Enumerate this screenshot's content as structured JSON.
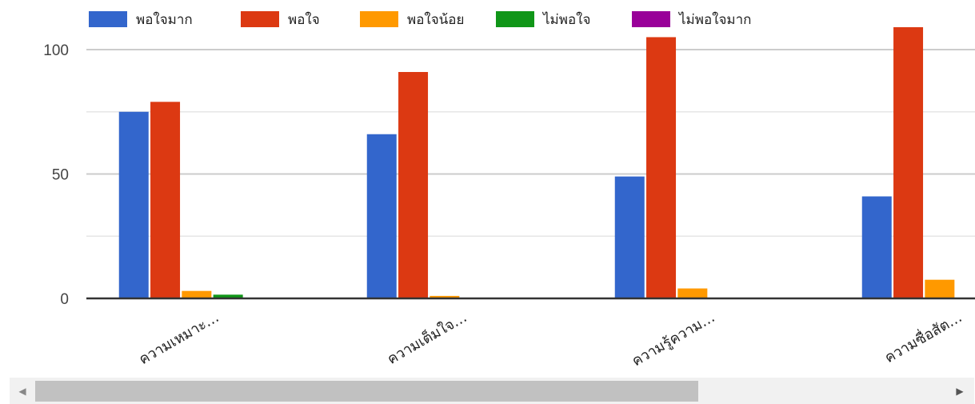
{
  "chart_data": {
    "type": "bar",
    "categories": [
      "ความเหมาะ…",
      "ความเต็มใจ…",
      "ความรู้ความ…",
      "ความซื่อสัต…"
    ],
    "series": [
      {
        "name": "พอใจมาก",
        "color": "#3366cc",
        "values": [
          75,
          66,
          49,
          41
        ]
      },
      {
        "name": "พอใจ",
        "color": "#dc3912",
        "values": [
          79,
          91,
          105,
          109
        ]
      },
      {
        "name": "พอใจน้อย",
        "color": "#ff9900",
        "values": [
          3,
          1,
          4,
          7.5
        ]
      },
      {
        "name": "ไม่พอใจ",
        "color": "#109618",
        "values": [
          1.5,
          0,
          0,
          0
        ]
      },
      {
        "name": "ไม่พอใจมาก",
        "color": "#990099",
        "values": [
          0,
          0,
          0,
          0
        ]
      }
    ],
    "yticks": [
      "0",
      "50",
      "100"
    ],
    "ylim": [
      0,
      100
    ],
    "grid": true,
    "legend_position": "top"
  },
  "scrollbar": {
    "left_arrow": "◀",
    "right_arrow": "▶"
  }
}
